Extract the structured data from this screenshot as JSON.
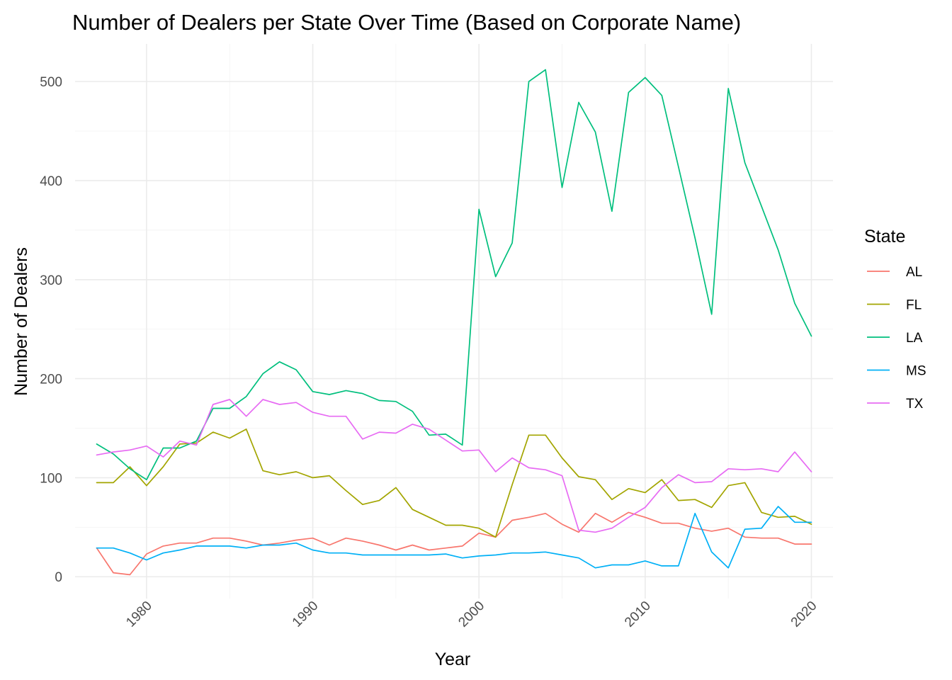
{
  "chart_data": {
    "type": "line",
    "title": "Number of Dealers per State Over Time (Based on Corporate Name)",
    "xlabel": "Year",
    "ylabel": "Number of Dealers",
    "xlim": [
      1975.7,
      2021.3
    ],
    "ylim": [
      -22,
      538
    ],
    "x_ticks": [
      1980,
      1990,
      2000,
      2010,
      2020
    ],
    "x_minor_ticks": [
      1985,
      1995,
      2005,
      2015
    ],
    "y_ticks": [
      0,
      100,
      200,
      300,
      400,
      500
    ],
    "y_minor_ticks": [
      50,
      150,
      250,
      350,
      450
    ],
    "grid": true,
    "legend": {
      "title": "State",
      "position": "right"
    },
    "x": [
      1977,
      1978,
      1979,
      1980,
      1981,
      1982,
      1983,
      1984,
      1985,
      1986,
      1987,
      1988,
      1989,
      1990,
      1991,
      1992,
      1993,
      1994,
      1995,
      1996,
      1997,
      1998,
      1999,
      2000,
      2001,
      2002,
      2003,
      2004,
      2005,
      2006,
      2007,
      2008,
      2009,
      2010,
      2011,
      2012,
      2013,
      2014,
      2015,
      2016,
      2017,
      2018,
      2019,
      2020
    ],
    "series": [
      {
        "name": "AL",
        "color": "#F8766D",
        "values": [
          29,
          4,
          2,
          23,
          31,
          34,
          34,
          39,
          39,
          36,
          32,
          34,
          37,
          39,
          32,
          39,
          36,
          32,
          27,
          32,
          27,
          29,
          31,
          44,
          40,
          57,
          60,
          64,
          53,
          45,
          64,
          55,
          65,
          60,
          54,
          54,
          49,
          46,
          49,
          40,
          39,
          39,
          33,
          33
        ]
      },
      {
        "name": "FL",
        "color": "#A3A500",
        "values": [
          95,
          95,
          111,
          92,
          111,
          134,
          135,
          146,
          140,
          149,
          107,
          103,
          106,
          100,
          102,
          87,
          73,
          77,
          90,
          68,
          60,
          52,
          52,
          49,
          40,
          93,
          143,
          143,
          120,
          101,
          98,
          78,
          89,
          85,
          98,
          77,
          78,
          70,
          92,
          95,
          65,
          60,
          61,
          53
        ]
      },
      {
        "name": "LA",
        "color": "#00BF7D",
        "values": [
          134,
          124,
          109,
          98,
          130,
          130,
          137,
          170,
          170,
          182,
          205,
          217,
          209,
          187,
          184,
          188,
          185,
          178,
          177,
          167,
          143,
          144,
          133,
          371,
          303,
          337,
          500,
          512,
          393,
          479,
          449,
          369,
          489,
          504,
          486,
          414,
          342,
          265,
          493,
          418,
          374,
          330,
          276,
          243
        ]
      },
      {
        "name": "MS",
        "color": "#00B0F6",
        "values": [
          29,
          29,
          24,
          17,
          24,
          27,
          31,
          31,
          31,
          29,
          32,
          32,
          34,
          27,
          24,
          24,
          22,
          22,
          22,
          22,
          22,
          23,
          19,
          21,
          22,
          24,
          24,
          25,
          22,
          19,
          9,
          12,
          12,
          16,
          11,
          11,
          64,
          25,
          9,
          48,
          49,
          71,
          55,
          55
        ]
      },
      {
        "name": "TX",
        "color": "#E76BF3",
        "values": [
          123,
          126,
          128,
          132,
          121,
          137,
          133,
          174,
          179,
          162,
          179,
          174,
          176,
          166,
          162,
          162,
          139,
          146,
          145,
          154,
          149,
          138,
          127,
          128,
          106,
          120,
          110,
          108,
          102,
          47,
          45,
          49,
          60,
          70,
          90,
          103,
          95,
          96,
          109,
          108,
          109,
          106,
          126,
          106
        ]
      }
    ]
  }
}
